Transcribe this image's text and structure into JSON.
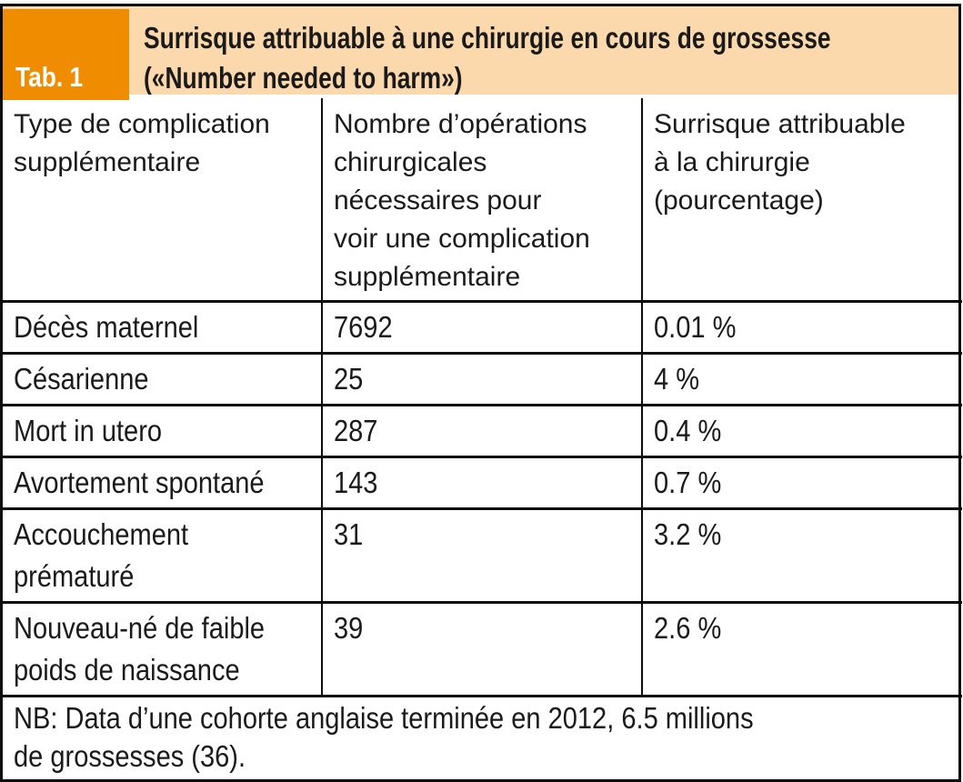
{
  "tab_label": "Tab. 1",
  "title_lines": [
    "Surrisque attribuable à une chirurgie en cours de grossesse",
    "(«Number needed to harm»)"
  ],
  "table": {
    "headers": [
      [
        "Type de complication",
        "supplémentaire"
      ],
      [
        "Nombre d’opérations",
        "chirurgicales",
        "nécessaires pour",
        "voir une complication",
        "supplémentaire"
      ],
      [
        "Surrisque attribuable",
        "à la chirurgie",
        "(pourcentage)"
      ]
    ],
    "rows": [
      {
        "complication": [
          "Décès maternel"
        ],
        "operations_needed": "7692",
        "excess_risk": "0.01 %"
      },
      {
        "complication": [
          "Césarienne"
        ],
        "operations_needed": "25",
        "excess_risk": "4 %"
      },
      {
        "complication": [
          "Mort in utero"
        ],
        "operations_needed": "287",
        "excess_risk": "0.4 %"
      },
      {
        "complication": [
          "Avortement spontané"
        ],
        "operations_needed": "143",
        "excess_risk": "0.7 %"
      },
      {
        "complication": [
          "Accouchement",
          "prématuré"
        ],
        "operations_needed": "31",
        "excess_risk": "3.2 %"
      },
      {
        "complication": [
          "Nouveau-né de faible",
          "poids de naissance"
        ],
        "operations_needed": "39",
        "excess_risk": "2.6 %"
      }
    ],
    "note_lines": [
      "NB: Data d’une cohorte anglaise terminée en 2012, 6.5 millions",
      "de grossesses (36)."
    ]
  },
  "colors": {
    "accent_orange": "#F08C00",
    "band_peach": "#FBD9AD",
    "border_black": "#0d0d0d"
  }
}
